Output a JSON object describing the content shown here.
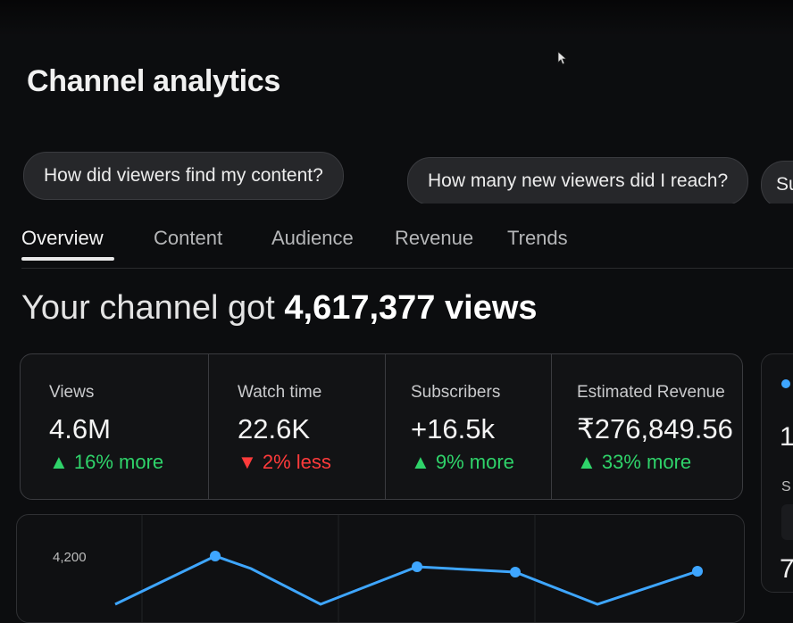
{
  "page": {
    "title": "Channel analytics"
  },
  "chips": [
    {
      "label": "How did viewers find my content?"
    },
    {
      "label": "How many new viewers did I reach?"
    },
    {
      "label": "Su"
    }
  ],
  "tabs": [
    {
      "label": "Overview",
      "active": true
    },
    {
      "label": "Content"
    },
    {
      "label": "Audience"
    },
    {
      "label": "Revenue"
    },
    {
      "label": "Trends"
    }
  ],
  "headline": {
    "prefix": "Your channel got ",
    "value": "4,617,377 views"
  },
  "metrics": [
    {
      "label": "Views",
      "value": "4.6M",
      "delta": "▲ 16% more",
      "trend": "up"
    },
    {
      "label": "Watch time",
      "value": "22.6K",
      "delta": "▼ 2% less",
      "trend": "down"
    },
    {
      "label": "Subscribers",
      "value": "+16.5k",
      "delta": "▲ 9% more",
      "trend": "up"
    },
    {
      "label": "Estimated Revenue",
      "value": "₹276,849.56",
      "delta": "▲ 33% more",
      "trend": "up"
    }
  ],
  "side_card": {
    "value": "1",
    "label": "S",
    "value2": "7"
  },
  "chart": {
    "ytick": "4,200",
    "line_color": "#3ea6ff"
  }
}
